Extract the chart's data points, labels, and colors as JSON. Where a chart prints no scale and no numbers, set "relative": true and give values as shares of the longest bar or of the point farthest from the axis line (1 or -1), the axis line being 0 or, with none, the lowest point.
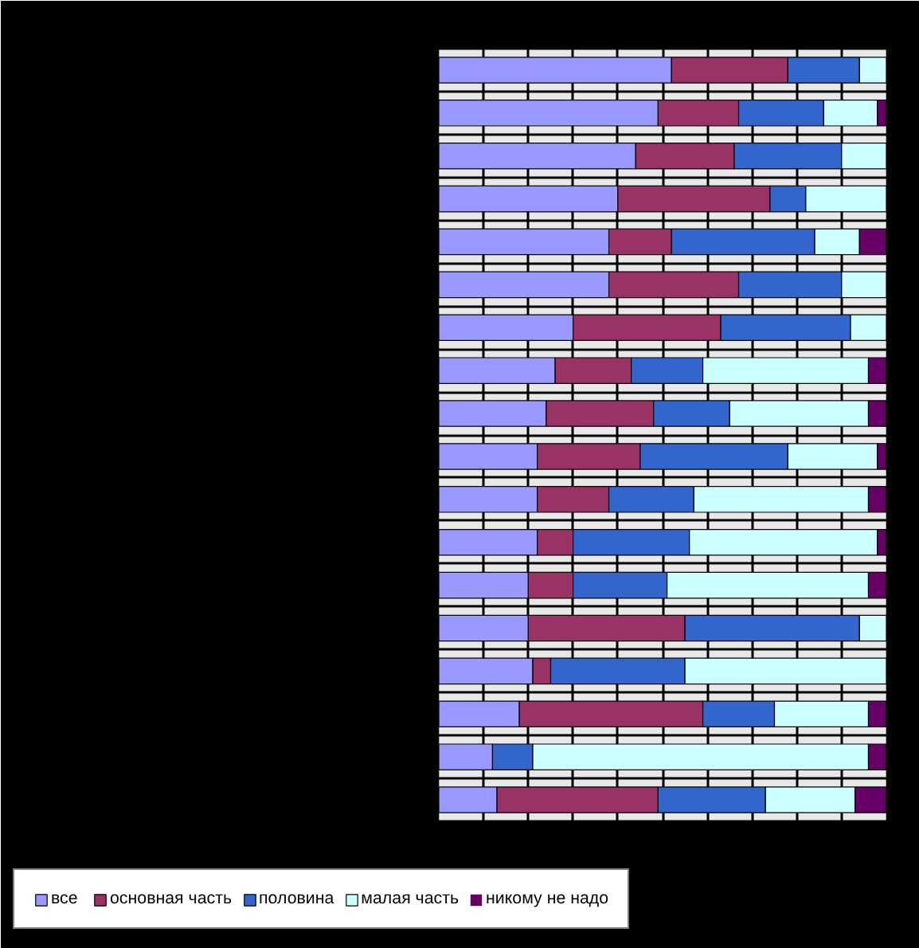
{
  "chart_data": {
    "type": "bar",
    "orientation": "horizontal",
    "stacked": true,
    "relative": true,
    "grid": true,
    "legend": "bottom left",
    "categories": [
      null,
      null,
      null,
      null,
      null,
      null,
      null,
      null,
      null,
      null,
      null,
      null,
      null,
      null,
      null,
      null,
      null,
      null
    ],
    "series": [
      {
        "name": "все",
        "color": "#9999ff",
        "values": [
          0.52,
          0.49,
          0.44,
          0.4,
          0.38,
          0.38,
          0.3,
          0.26,
          0.24,
          0.22,
          0.22,
          0.22,
          0.2,
          0.2,
          0.21,
          0.18,
          0.12,
          0.13
        ]
      },
      {
        "name": "основная часть",
        "color": "#993366",
        "values": [
          0.26,
          0.18,
          0.22,
          0.34,
          0.14,
          0.29,
          0.33,
          0.17,
          0.24,
          0.23,
          0.16,
          0.08,
          0.1,
          0.35,
          0.04,
          0.41,
          0,
          0.36
        ]
      },
      {
        "name": "половина",
        "color": "#3366cc",
        "values": [
          0.16,
          0.19,
          0.24,
          0.08,
          0.32,
          0.23,
          0.29,
          0.16,
          0.17,
          0.33,
          0.19,
          0.26,
          0.21,
          0.39,
          0.3,
          0.16,
          0.09,
          0.24
        ]
      },
      {
        "name": "малая часть",
        "color": "#ccffff",
        "values": [
          0.06,
          0.12,
          0.1,
          0.18,
          0.1,
          0.1,
          0.08,
          0.37,
          0.31,
          0.2,
          0.39,
          0.42,
          0.45,
          0.06,
          0.45,
          0.21,
          0.75,
          0.2
        ]
      },
      {
        "name": "никому не надо",
        "color": "#660066",
        "values": [
          0,
          0.02,
          0,
          0,
          0.06,
          0,
          0,
          0.04,
          0.04,
          0.02,
          0.04,
          0.02,
          0.04,
          0,
          0,
          0.04,
          0.04,
          0.07
        ]
      }
    ]
  }
}
